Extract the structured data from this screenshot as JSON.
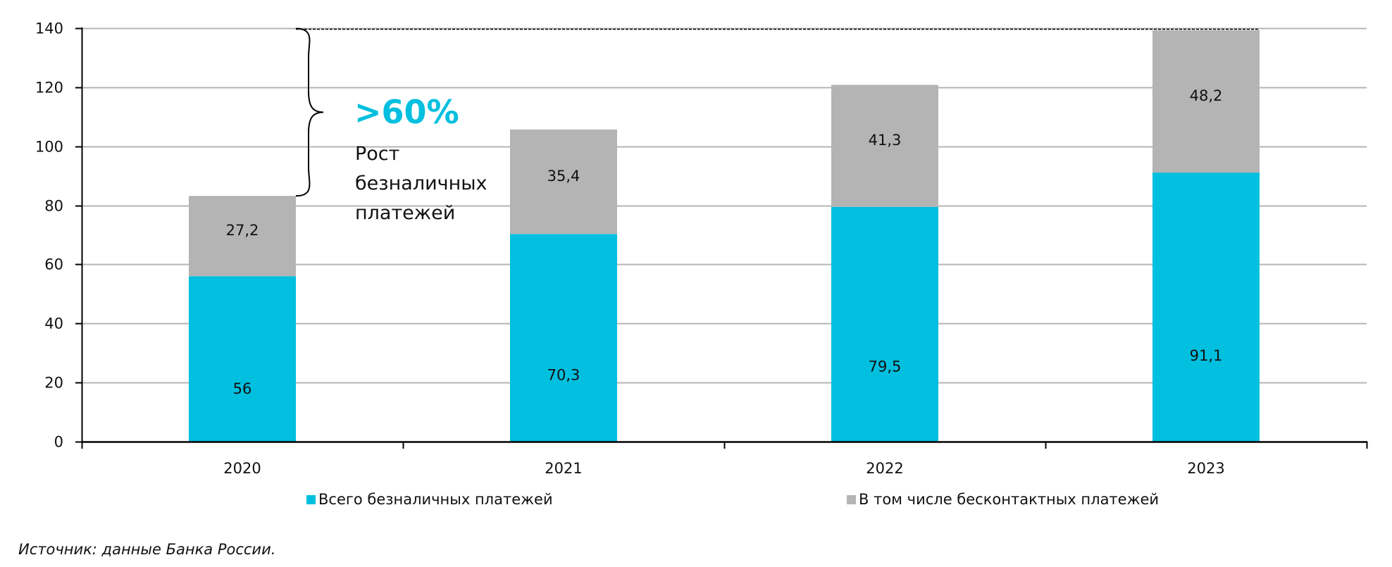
{
  "chart_data": {
    "type": "bar",
    "stacked": true,
    "title": "",
    "xlabel": "",
    "ylabel": "",
    "categories": [
      "2020",
      "2021",
      "2022",
      "2023"
    ],
    "series": [
      {
        "name": "Всего безналичных платежей",
        "color": "#00BFDF",
        "values": [
          56,
          70.3,
          79.5,
          91.1
        ],
        "labels": [
          "56",
          "70,3",
          "79,5",
          "91,1"
        ]
      },
      {
        "name": "В том числе бесконтактных платежей",
        "color": "#B4B4B4",
        "values": [
          27.2,
          35.4,
          41.3,
          48.2
        ],
        "labels": [
          "27,2",
          "35,4",
          "41,3",
          "48,2"
        ]
      }
    ],
    "ylim": [
      0,
      140
    ],
    "yticks": [
      0,
      20,
      40,
      60,
      80,
      100,
      120,
      140
    ],
    "grid": true,
    "legend_position": "bottom",
    "annotation": {
      "headline": ">60%",
      "lines": [
        "Рост",
        "безналичных",
        "платежей"
      ],
      "from_value": 83.2,
      "to_value": 140
    }
  },
  "source": "Источник: данные Банка России.",
  "colors": {
    "accent": "#00BFDF",
    "secondary": "#B4B4B4",
    "grid": "#B4B4B4",
    "axis": "#000000"
  }
}
